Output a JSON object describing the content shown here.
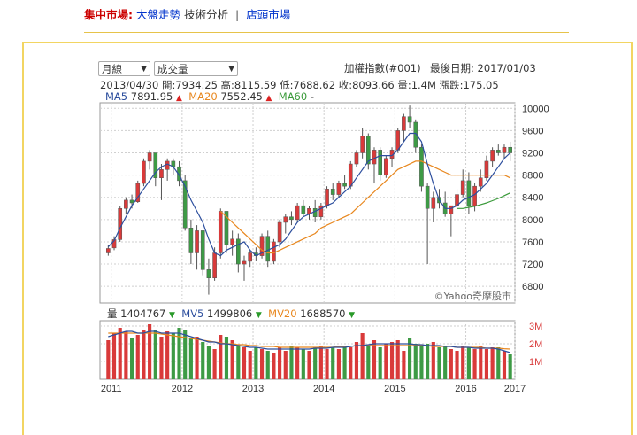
{
  "nav": {
    "section": "集中市場:",
    "link1": "大盤走勢",
    "link2": "技術分析",
    "separator": "|",
    "link3": "店頭市場"
  },
  "controls": {
    "period_select": "月線",
    "indicator_select": "成交量"
  },
  "header": {
    "index_name": "加權指數(#001)",
    "last_date": "最後日期: 2017/01/03"
  },
  "ohlc": {
    "date": "2013/04/30",
    "open": "開:7934.25",
    "high": "高:8115.59",
    "low": "低:7688.62",
    "close": "收:8093.66",
    "volume": "量:1.4M",
    "change": "漲跌:175.05"
  },
  "ma": {
    "ma5_label": "MA5",
    "ma5_value": "7891.95",
    "ma20_label": "MA20",
    "ma20_value": "7552.45",
    "ma60_label": "MA60",
    "ma60_value": "-"
  },
  "vol": {
    "label": "量",
    "value": "1404767",
    "mv5_label": "MV5",
    "mv5_value": "1499806",
    "mv20_label": "MV20",
    "mv20_value": "1688570"
  },
  "watermark": "©Yahoo奇摩股市",
  "colors": {
    "up": "#d93a3a",
    "down": "#3d9a45",
    "ma5": "#2d4f9e",
    "ma20": "#e8871e",
    "ma60": "#3a9a3a",
    "grid": "#cfcfcf"
  },
  "chart_data": {
    "type": "candlestick",
    "y_ticks": [
      "10000",
      "9600",
      "9200",
      "8800",
      "8400",
      "8000",
      "7600",
      "7200",
      "6800"
    ],
    "ylim": [
      6500,
      10100
    ],
    "vol_ticks": [
      "3M",
      "2M",
      "1M"
    ],
    "vol_lim": [
      0,
      3.3
    ],
    "x_ticks": [
      "2011",
      "2012",
      "2013",
      "2014",
      "2015",
      "2016",
      "2017"
    ],
    "price": [
      [
        7400,
        7550,
        7350,
        7480
      ],
      [
        7490,
        7700,
        7450,
        7640
      ],
      [
        7640,
        8250,
        7600,
        8200
      ],
      [
        8200,
        8400,
        8100,
        8350
      ],
      [
        8350,
        8450,
        8200,
        8300
      ],
      [
        8320,
        8700,
        8300,
        8650
      ],
      [
        8650,
        9100,
        8600,
        9050
      ],
      [
        9050,
        9250,
        8900,
        9200
      ],
      [
        9200,
        9200,
        8600,
        8750
      ],
      [
        8750,
        9000,
        8350,
        8900
      ],
      [
        8900,
        9100,
        8700,
        9050
      ],
      [
        9050,
        9100,
        8800,
        8950
      ],
      [
        8950,
        9050,
        8600,
        8700
      ],
      [
        8700,
        8800,
        7800,
        7850
      ],
      [
        7850,
        8000,
        7200,
        7400
      ],
      [
        7400,
        7900,
        7100,
        7800
      ],
      [
        7800,
        7800,
        7000,
        7100
      ],
      [
        7100,
        7300,
        6650,
        6950
      ],
      [
        6950,
        7500,
        6900,
        7400
      ],
      [
        7400,
        8200,
        7300,
        8150
      ],
      [
        8150,
        8150,
        7400,
        7550
      ],
      [
        7550,
        7800,
        7350,
        7650
      ],
      [
        7650,
        7750,
        7050,
        7200
      ],
      [
        7200,
        7350,
        6900,
        7250
      ],
      [
        7250,
        7450,
        7150,
        7400
      ],
      [
        7400,
        7500,
        7250,
        7350
      ],
      [
        7350,
        7750,
        7300,
        7700
      ],
      [
        7700,
        7800,
        7150,
        7250
      ],
      [
        7250,
        7650,
        7200,
        7600
      ],
      [
        7600,
        8000,
        7500,
        7950
      ],
      [
        7950,
        8100,
        7750,
        8050
      ],
      [
        8050,
        8150,
        7900,
        8000
      ],
      [
        8000,
        8300,
        7950,
        8250
      ],
      [
        8250,
        8350,
        8050,
        8100
      ],
      [
        8100,
        8250,
        8000,
        8200
      ],
      [
        8200,
        8350,
        7950,
        8050
      ],
      [
        8050,
        8300,
        8000,
        8250
      ],
      [
        8250,
        8600,
        8200,
        8550
      ],
      [
        8550,
        8650,
        8350,
        8450
      ],
      [
        8450,
        8700,
        8400,
        8650
      ],
      [
        8650,
        8800,
        8550,
        8600
      ],
      [
        8600,
        9050,
        8550,
        9000
      ],
      [
        9000,
        9250,
        8950,
        9200
      ],
      [
        9200,
        9650,
        9100,
        9500
      ],
      [
        9500,
        9550,
        8900,
        9000
      ],
      [
        9000,
        9300,
        8650,
        9250
      ],
      [
        9250,
        9300,
        8700,
        8800
      ],
      [
        8800,
        9150,
        8750,
        9100
      ],
      [
        9100,
        9300,
        8950,
        9250
      ],
      [
        9250,
        9650,
        9200,
        9600
      ],
      [
        9600,
        9900,
        9400,
        9850
      ],
      [
        9850,
        10050,
        9650,
        9750
      ],
      [
        9750,
        9800,
        9200,
        9300
      ],
      [
        9300,
        9350,
        8500,
        8600
      ],
      [
        8600,
        8650,
        7200,
        8200
      ],
      [
        8200,
        8500,
        7950,
        8400
      ],
      [
        8400,
        8550,
        8200,
        8300
      ],
      [
        8300,
        8500,
        8050,
        8100
      ],
      [
        8100,
        8200,
        7700,
        8250
      ],
      [
        8250,
        8550,
        8200,
        8450
      ],
      [
        8450,
        8900,
        8400,
        8700
      ],
      [
        8700,
        8850,
        8100,
        8250
      ],
      [
        8250,
        8650,
        8150,
        8600
      ],
      [
        8600,
        8900,
        8500,
        8750
      ],
      [
        8750,
        9150,
        8700,
        9050
      ],
      [
        9050,
        9300,
        8950,
        9250
      ],
      [
        9250,
        9350,
        9150,
        9200
      ],
      [
        9200,
        9350,
        9100,
        9300
      ],
      [
        9300,
        9400,
        9050,
        9200
      ]
    ],
    "ma5": [
      7510,
      7620,
      7850,
      8050,
      8250,
      8400,
      8550,
      8700,
      8850,
      8950,
      9000,
      8950,
      8800,
      8600,
      8350,
      8150,
      7950,
      7650,
      7400,
      7350,
      7450,
      7500,
      7550,
      7600,
      7450,
      7350,
      7400,
      7450,
      7500,
      7550,
      7650,
      7800,
      7950,
      8050,
      8100,
      8150,
      8200,
      8250,
      8300,
      8400,
      8500,
      8600,
      8750,
      8900,
      9050,
      9100,
      9150,
      9150,
      9150,
      9250,
      9400,
      9550,
      9550,
      9400,
      9000,
      8650,
      8350,
      8200,
      8200,
      8250,
      8350,
      8400,
      8450,
      8550,
      8650,
      8800,
      8950,
      9100,
      9200
    ],
    "ma20": [
      null,
      null,
      null,
      null,
      null,
      null,
      null,
      null,
      null,
      null,
      null,
      null,
      null,
      null,
      null,
      null,
      null,
      null,
      null,
      8150,
      8050,
      7950,
      7850,
      7750,
      7650,
      7550,
      7450,
      7400,
      7400,
      7450,
      7500,
      7550,
      7600,
      7650,
      7700,
      7750,
      7850,
      7900,
      7950,
      8000,
      8050,
      8100,
      8200,
      8300,
      8400,
      8500,
      8600,
      8700,
      8800,
      8900,
      8950,
      9000,
      9050,
      9050,
      9000,
      8950,
      8900,
      8850,
      8800,
      8800,
      8800,
      8800,
      8800,
      8800,
      8800,
      8800,
      8800,
      8800,
      8750
    ],
    "ma60": [
      null,
      null,
      null,
      null,
      null,
      null,
      null,
      null,
      null,
      null,
      null,
      null,
      null,
      null,
      null,
      null,
      null,
      null,
      null,
      null,
      null,
      null,
      null,
      null,
      null,
      null,
      null,
      null,
      null,
      null,
      null,
      null,
      null,
      null,
      null,
      null,
      null,
      null,
      null,
      null,
      null,
      null,
      null,
      null,
      null,
      null,
      null,
      null,
      null,
      null,
      null,
      null,
      null,
      null,
      null,
      null,
      null,
      null,
      null,
      8200,
      8200,
      8220,
      8240,
      8270,
      8300,
      8340,
      8380,
      8430,
      8480
    ],
    "volume": [
      2.2,
      2.6,
      2.9,
      2.7,
      2.3,
      2.5,
      2.8,
      3.1,
      2.8,
      2.4,
      2.7,
      2.6,
      2.9,
      2.8,
      2.3,
      2.4,
      2.1,
      1.9,
      1.7,
      2.5,
      2.4,
      2.2,
      1.9,
      1.8,
      1.6,
      1.8,
      1.7,
      1.6,
      1.5,
      1.8,
      1.6,
      1.9,
      1.8,
      1.7,
      1.6,
      1.8,
      1.9,
      1.7,
      1.8,
      1.7,
      1.9,
      1.8,
      2.1,
      2.6,
      1.9,
      2.2,
      1.8,
      2.0,
      2.1,
      2.2,
      1.6,
      2.3,
      2.0,
      1.9,
      2.0,
      2.1,
      1.8,
      1.9,
      1.7,
      1.6,
      1.9,
      1.8,
      1.7,
      1.9,
      1.7,
      1.8,
      1.8,
      1.6,
      1.4
    ],
    "mv5": [
      2.4,
      2.5,
      2.6,
      2.7,
      2.7,
      2.6,
      2.6,
      2.7,
      2.7,
      2.6,
      2.6,
      2.6,
      2.6,
      2.5,
      2.4,
      2.3,
      2.2,
      2.1,
      2.1,
      2.0,
      2.0,
      1.95,
      1.9,
      1.85,
      1.8,
      1.8,
      1.75,
      1.7,
      1.7,
      1.7,
      1.7,
      1.7,
      1.7,
      1.7,
      1.7,
      1.75,
      1.75,
      1.75,
      1.8,
      1.8,
      1.8,
      1.85,
      1.9,
      1.9,
      1.95,
      2.0,
      2.0,
      2.0,
      2.0,
      2.0,
      2.0,
      2.0,
      1.95,
      1.95,
      1.9,
      1.9,
      1.9,
      1.85,
      1.85,
      1.8,
      1.8,
      1.8,
      1.75,
      1.75,
      1.75,
      1.75,
      1.7,
      1.6,
      1.5
    ],
    "mv20": [
      2.6,
      2.6,
      2.6,
      2.6,
      2.6,
      2.6,
      2.6,
      2.6,
      2.6,
      2.55,
      2.5,
      2.45,
      2.4,
      2.35,
      2.3,
      2.25,
      2.2,
      2.15,
      2.1,
      2.05,
      2.0,
      2.0,
      1.95,
      1.95,
      1.9,
      1.9,
      1.85,
      1.85,
      1.85,
      1.8,
      1.8,
      1.8,
      1.8,
      1.8,
      1.8,
      1.8,
      1.8,
      1.8,
      1.8,
      1.85,
      1.85,
      1.85,
      1.9,
      1.9,
      1.9,
      1.9,
      1.9,
      1.9,
      1.9,
      1.9,
      1.9,
      1.9,
      1.9,
      1.9,
      1.9,
      1.85,
      1.85,
      1.85,
      1.85,
      1.8,
      1.8,
      1.8,
      1.8,
      1.8,
      1.75,
      1.75,
      1.75,
      1.72,
      1.7
    ]
  }
}
